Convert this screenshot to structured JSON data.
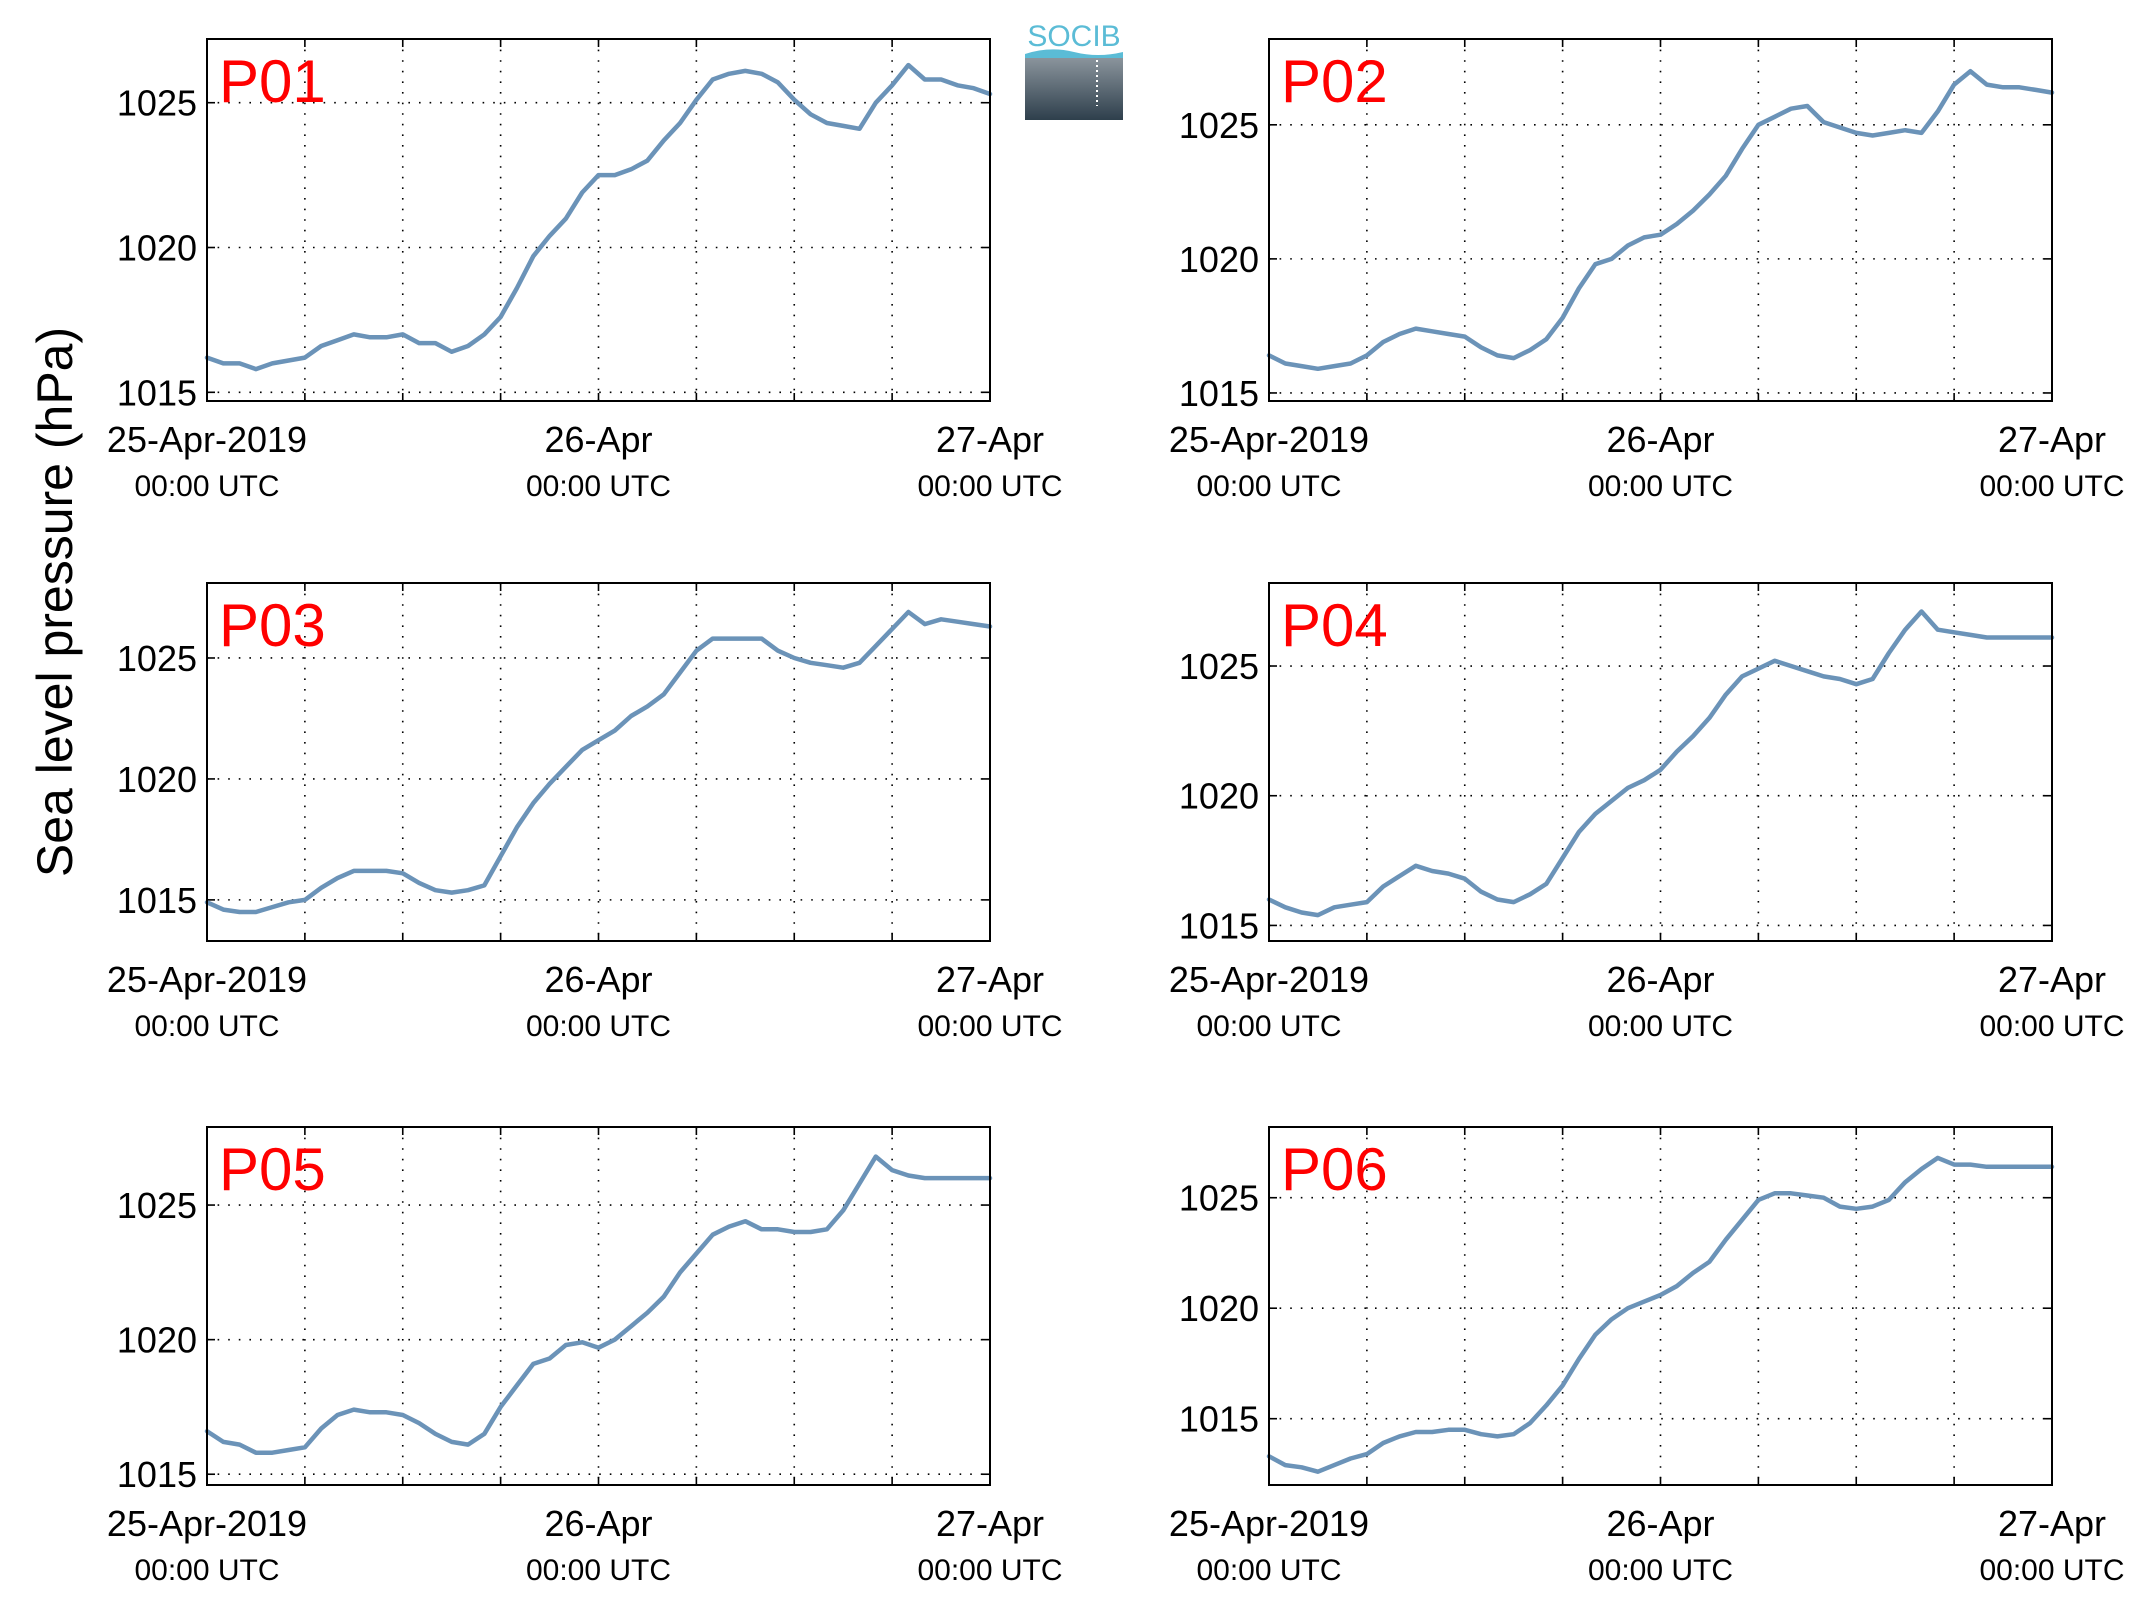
{
  "figure": {
    "ylabel": "Sea level pressure (hPa)",
    "logo_text": "SOCIB",
    "line_color": "#6b93b8",
    "title_color": "#ff0000",
    "logo_text_color": "#5bbcd6",
    "logo_box_top_color": "#8a949c",
    "logo_box_bottom_color": "#2e3f4c"
  },
  "chart_data": [
    {
      "type": "line",
      "title": "P01",
      "x_ticks": [
        {
          "x": 0,
          "date": "25-Apr-2019",
          "time": "00:00 UTC"
        },
        {
          "x": 24,
          "date": "26-Apr",
          "time": "00:00 UTC"
        },
        {
          "x": 48,
          "date": "27-Apr",
          "time": "00:00 UTC"
        }
      ],
      "xlim": [
        0,
        48
      ],
      "x_grid_hours": [
        6,
        12,
        18,
        24,
        30,
        36,
        42
      ],
      "ylim": [
        1014.7,
        1027.2
      ],
      "y_ticks": [
        1015,
        1020,
        1025
      ],
      "grid": true,
      "series": [
        {
          "x": [
            0,
            1,
            2,
            3,
            4,
            5,
            6,
            7,
            8,
            9,
            10,
            11,
            12,
            13,
            14,
            15,
            16,
            17,
            18,
            19,
            20,
            21,
            22,
            23,
            24,
            25,
            26,
            27,
            28,
            29,
            30,
            31,
            32,
            33,
            34,
            35,
            36,
            37,
            38,
            39,
            40,
            41,
            42,
            43,
            44,
            45,
            46,
            47,
            48
          ],
          "values": [
            1016.2,
            1016.0,
            1016.0,
            1015.8,
            1016.0,
            1016.1,
            1016.2,
            1016.6,
            1016.8,
            1017.0,
            1016.9,
            1016.9,
            1017.0,
            1016.7,
            1016.7,
            1016.4,
            1016.6,
            1017.0,
            1017.6,
            1018.6,
            1019.7,
            1020.4,
            1021.0,
            1021.9,
            1022.5,
            1022.5,
            1022.7,
            1023.0,
            1023.7,
            1024.3,
            1025.1,
            1025.8,
            1026.0,
            1026.1,
            1026.0,
            1025.7,
            1025.1,
            1024.6,
            1024.3,
            1024.2,
            1024.1,
            1025.0,
            1025.6,
            1026.3,
            1025.8,
            1025.8,
            1025.6,
            1025.5,
            1025.3
          ]
        }
      ]
    },
    {
      "type": "line",
      "title": "P02",
      "x_ticks": [
        {
          "x": 0,
          "date": "25-Apr-2019",
          "time": "00:00 UTC"
        },
        {
          "x": 24,
          "date": "26-Apr",
          "time": "00:00 UTC"
        },
        {
          "x": 48,
          "date": "27-Apr",
          "time": "00:00 UTC"
        }
      ],
      "xlim": [
        0,
        48
      ],
      "x_grid_hours": [
        6,
        12,
        18,
        24,
        30,
        36,
        42
      ],
      "ylim": [
        1014.7,
        1028.2
      ],
      "y_ticks": [
        1015,
        1020,
        1025
      ],
      "grid": true,
      "series": [
        {
          "x": [
            0,
            1,
            2,
            3,
            4,
            5,
            6,
            7,
            8,
            9,
            10,
            11,
            12,
            13,
            14,
            15,
            16,
            17,
            18,
            19,
            20,
            21,
            22,
            23,
            24,
            25,
            26,
            27,
            28,
            29,
            30,
            31,
            32,
            33,
            34,
            35,
            36,
            37,
            38,
            39,
            40,
            41,
            42,
            43,
            44,
            45,
            46,
            47,
            48
          ],
          "values": [
            1016.4,
            1016.1,
            1016.0,
            1015.9,
            1016.0,
            1016.1,
            1016.4,
            1016.9,
            1017.2,
            1017.4,
            1017.3,
            1017.2,
            1017.1,
            1016.7,
            1016.4,
            1016.3,
            1016.6,
            1017.0,
            1017.8,
            1018.9,
            1019.8,
            1020.0,
            1020.5,
            1020.8,
            1020.9,
            1021.3,
            1021.8,
            1022.4,
            1023.1,
            1024.1,
            1025.0,
            1025.3,
            1025.6,
            1025.7,
            1025.1,
            1024.9,
            1024.7,
            1024.6,
            1024.7,
            1024.8,
            1024.7,
            1025.5,
            1026.5,
            1027.0,
            1026.5,
            1026.4,
            1026.4,
            1026.3,
            1026.2
          ]
        }
      ]
    },
    {
      "type": "line",
      "title": "P03",
      "x_ticks": [
        {
          "x": 0,
          "date": "25-Apr-2019",
          "time": "00:00 UTC"
        },
        {
          "x": 24,
          "date": "26-Apr",
          "time": "00:00 UTC"
        },
        {
          "x": 48,
          "date": "27-Apr",
          "time": "00:00 UTC"
        }
      ],
      "xlim": [
        0,
        48
      ],
      "x_grid_hours": [
        6,
        12,
        18,
        24,
        30,
        36,
        42
      ],
      "ylim": [
        1013.3,
        1028.1
      ],
      "y_ticks": [
        1015,
        1020,
        1025
      ],
      "grid": true,
      "series": [
        {
          "x": [
            0,
            1,
            2,
            3,
            4,
            5,
            6,
            7,
            8,
            9,
            10,
            11,
            12,
            13,
            14,
            15,
            16,
            17,
            18,
            19,
            20,
            21,
            22,
            23,
            24,
            25,
            26,
            27,
            28,
            29,
            30,
            31,
            32,
            33,
            34,
            35,
            36,
            37,
            38,
            39,
            40,
            41,
            42,
            43,
            44,
            45,
            46,
            47,
            48
          ],
          "values": [
            1014.9,
            1014.6,
            1014.5,
            1014.5,
            1014.7,
            1014.9,
            1015.0,
            1015.5,
            1015.9,
            1016.2,
            1016.2,
            1016.2,
            1016.1,
            1015.7,
            1015.4,
            1015.3,
            1015.4,
            1015.6,
            1016.8,
            1018.0,
            1019.0,
            1019.8,
            1020.5,
            1021.2,
            1021.6,
            1022.0,
            1022.6,
            1023.0,
            1023.5,
            1024.4,
            1025.3,
            1025.8,
            1025.8,
            1025.8,
            1025.8,
            1025.3,
            1025.0,
            1024.8,
            1024.7,
            1024.6,
            1024.8,
            1025.5,
            1026.2,
            1026.9,
            1026.4,
            1026.6,
            1026.5,
            1026.4,
            1026.3
          ]
        }
      ]
    },
    {
      "type": "line",
      "title": "P04",
      "x_ticks": [
        {
          "x": 0,
          "date": "25-Apr-2019",
          "time": "00:00 UTC"
        },
        {
          "x": 24,
          "date": "26-Apr",
          "time": "00:00 UTC"
        },
        {
          "x": 48,
          "date": "27-Apr",
          "time": "00:00 UTC"
        }
      ],
      "xlim": [
        0,
        48
      ],
      "x_grid_hours": [
        6,
        12,
        18,
        24,
        30,
        36,
        42
      ],
      "ylim": [
        1014.4,
        1028.2
      ],
      "y_ticks": [
        1015,
        1020,
        1025
      ],
      "grid": true,
      "series": [
        {
          "x": [
            0,
            1,
            2,
            3,
            4,
            5,
            6,
            7,
            8,
            9,
            10,
            11,
            12,
            13,
            14,
            15,
            16,
            17,
            18,
            19,
            20,
            21,
            22,
            23,
            24,
            25,
            26,
            27,
            28,
            29,
            30,
            31,
            32,
            33,
            34,
            35,
            36,
            37,
            38,
            39,
            40,
            41,
            42,
            43,
            44,
            45,
            46,
            47,
            48
          ],
          "values": [
            1016.0,
            1015.7,
            1015.5,
            1015.4,
            1015.7,
            1015.8,
            1015.9,
            1016.5,
            1016.9,
            1017.3,
            1017.1,
            1017.0,
            1016.8,
            1016.3,
            1016.0,
            1015.9,
            1016.2,
            1016.6,
            1017.6,
            1018.6,
            1019.3,
            1019.8,
            1020.3,
            1020.6,
            1021.0,
            1021.7,
            1022.3,
            1023.0,
            1023.9,
            1024.6,
            1024.9,
            1025.2,
            1025.0,
            1024.8,
            1024.6,
            1024.5,
            1024.3,
            1024.5,
            1025.5,
            1026.4,
            1027.1,
            1026.4,
            1026.3,
            1026.2,
            1026.1,
            1026.1,
            1026.1,
            1026.1,
            1026.1
          ]
        }
      ]
    },
    {
      "type": "line",
      "title": "P05",
      "x_ticks": [
        {
          "x": 0,
          "date": "25-Apr-2019",
          "time": "00:00 UTC"
        },
        {
          "x": 24,
          "date": "26-Apr",
          "time": "00:00 UTC"
        },
        {
          "x": 48,
          "date": "27-Apr",
          "time": "00:00 UTC"
        }
      ],
      "xlim": [
        0,
        48
      ],
      "x_grid_hours": [
        6,
        12,
        18,
        24,
        30,
        36,
        42
      ],
      "ylim": [
        1014.6,
        1027.9
      ],
      "y_ticks": [
        1015,
        1020,
        1025
      ],
      "grid": true,
      "series": [
        {
          "x": [
            0,
            1,
            2,
            3,
            4,
            5,
            6,
            7,
            8,
            9,
            10,
            11,
            12,
            13,
            14,
            15,
            16,
            17,
            18,
            19,
            20,
            21,
            22,
            23,
            24,
            25,
            26,
            27,
            28,
            29,
            30,
            31,
            32,
            33,
            34,
            35,
            36,
            37,
            38,
            39,
            40,
            41,
            42,
            43,
            44,
            45,
            46,
            47,
            48
          ],
          "values": [
            1016.6,
            1016.2,
            1016.1,
            1015.8,
            1015.8,
            1015.9,
            1016.0,
            1016.7,
            1017.2,
            1017.4,
            1017.3,
            1017.3,
            1017.2,
            1016.9,
            1016.5,
            1016.2,
            1016.1,
            1016.5,
            1017.5,
            1018.3,
            1019.1,
            1019.3,
            1019.8,
            1019.9,
            1019.7,
            1020.0,
            1020.5,
            1021.0,
            1021.6,
            1022.5,
            1023.2,
            1023.9,
            1024.2,
            1024.4,
            1024.1,
            1024.1,
            1024.0,
            1024.0,
            1024.1,
            1024.8,
            1025.8,
            1026.8,
            1026.3,
            1026.1,
            1026.0,
            1026.0,
            1026.0,
            1026.0,
            1026.0
          ]
        }
      ]
    },
    {
      "type": "line",
      "title": "P06",
      "x_ticks": [
        {
          "x": 0,
          "date": "25-Apr-2019",
          "time": "00:00 UTC"
        },
        {
          "x": 24,
          "date": "26-Apr",
          "time": "00:00 UTC"
        },
        {
          "x": 48,
          "date": "27-Apr",
          "time": "00:00 UTC"
        }
      ],
      "xlim": [
        0,
        48
      ],
      "x_grid_hours": [
        6,
        12,
        18,
        24,
        30,
        36,
        42
      ],
      "ylim": [
        1012.0,
        1028.2
      ],
      "y_ticks": [
        1015,
        1020,
        1025
      ],
      "grid": true,
      "series": [
        {
          "x": [
            0,
            1,
            2,
            3,
            4,
            5,
            6,
            7,
            8,
            9,
            10,
            11,
            12,
            13,
            14,
            15,
            16,
            17,
            18,
            19,
            20,
            21,
            22,
            23,
            24,
            25,
            26,
            27,
            28,
            29,
            30,
            31,
            32,
            33,
            34,
            35,
            36,
            37,
            38,
            39,
            40,
            41,
            42,
            43,
            44,
            45,
            46,
            47,
            48
          ],
          "values": [
            1013.3,
            1012.9,
            1012.8,
            1012.6,
            1012.9,
            1013.2,
            1013.4,
            1013.9,
            1014.2,
            1014.4,
            1014.4,
            1014.5,
            1014.5,
            1014.3,
            1014.2,
            1014.3,
            1014.8,
            1015.6,
            1016.5,
            1017.7,
            1018.8,
            1019.5,
            1020.0,
            1020.3,
            1020.6,
            1021.0,
            1021.6,
            1022.1,
            1023.1,
            1024.0,
            1024.9,
            1025.2,
            1025.2,
            1025.1,
            1025.0,
            1024.6,
            1024.5,
            1024.6,
            1024.9,
            1025.7,
            1026.3,
            1026.8,
            1026.5,
            1026.5,
            1026.4,
            1026.4,
            1026.4,
            1026.4,
            1026.4
          ]
        }
      ]
    }
  ]
}
